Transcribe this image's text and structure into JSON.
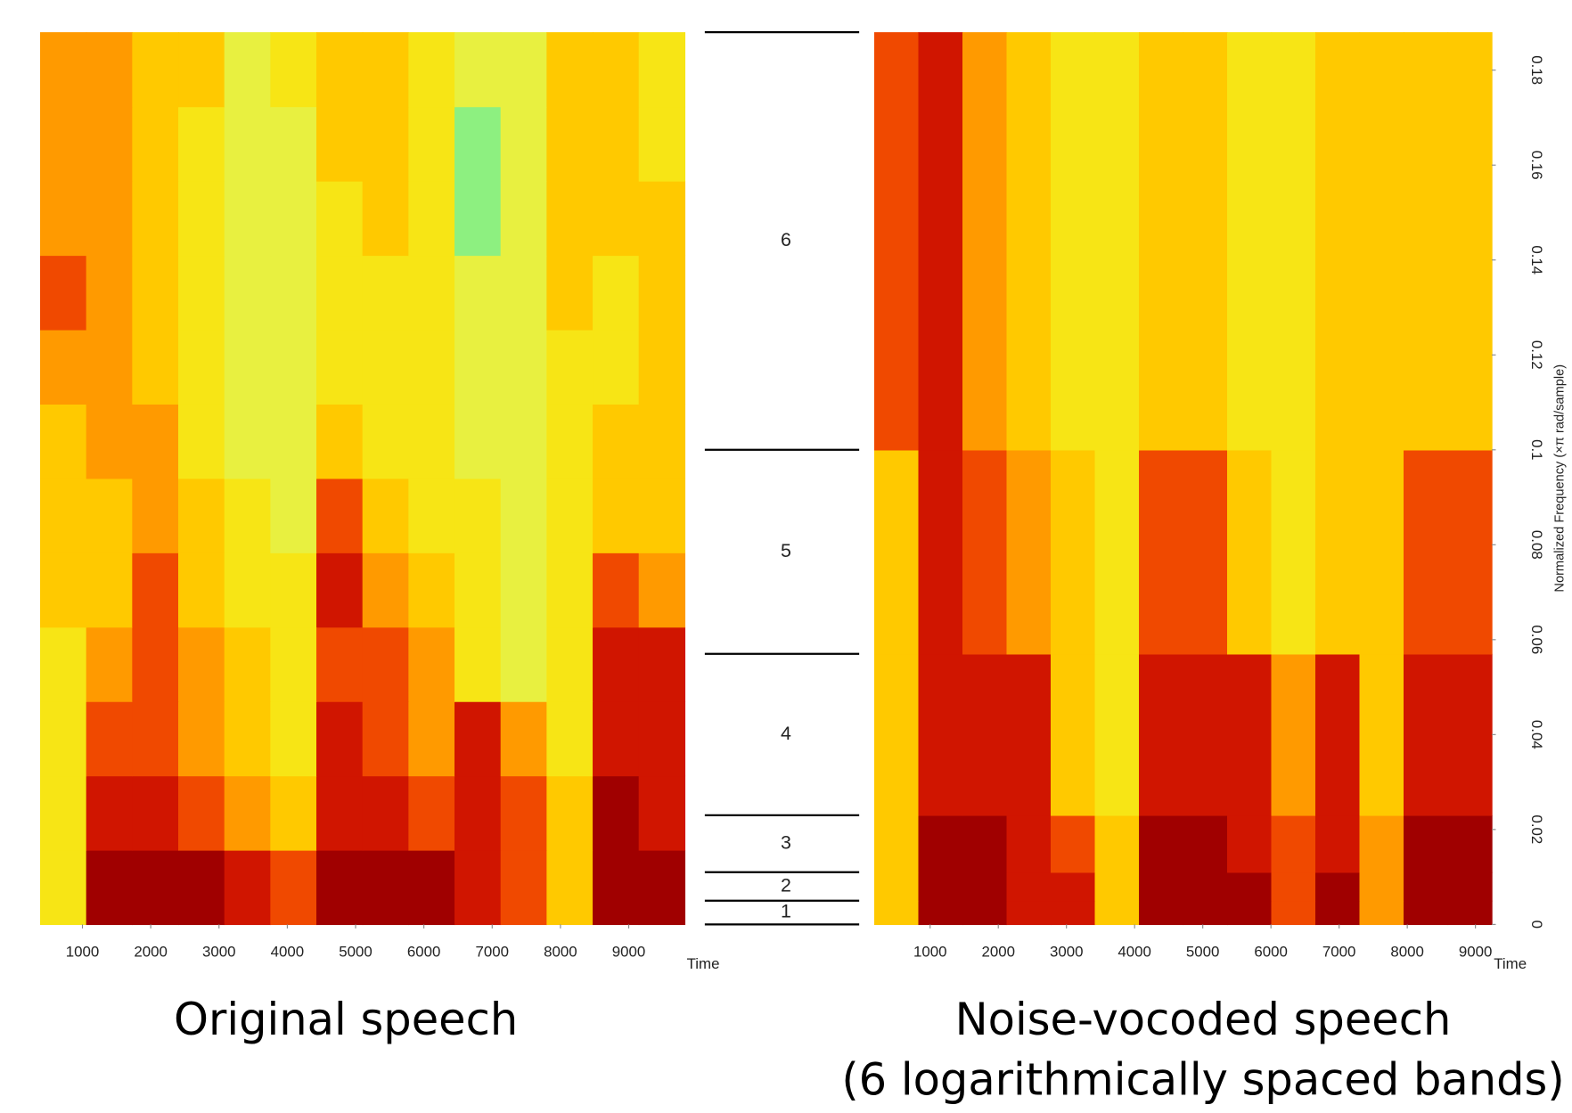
{
  "chart_data": [
    {
      "type": "heatmap",
      "caption": [
        "Original speech"
      ],
      "xlabel": "Time",
      "xlim": [
        380,
        9820
      ],
      "xticks": [
        1000,
        2000,
        3000,
        4000,
        5000,
        6000,
        7000,
        8000,
        9000
      ],
      "zlim": [
        0,
        9
      ],
      "colormap": [
        "#00c8ff",
        "#60f0a0",
        "#e8f040",
        "#ffe000",
        "#ff9a00",
        "#e82000",
        "#a00000"
      ],
      "z": [
        [
          4,
          9,
          9,
          9,
          8,
          7,
          9,
          9,
          9,
          8,
          7,
          5,
          9,
          9
        ],
        [
          4,
          8,
          8,
          7,
          6,
          5,
          8,
          8,
          7,
          8,
          7,
          5,
          9,
          8
        ],
        [
          4,
          7,
          7,
          6,
          5,
          4,
          8,
          7,
          6,
          8,
          6,
          4,
          8,
          8
        ],
        [
          4,
          6,
          7,
          6,
          5,
          4,
          7,
          7,
          6,
          4,
          3,
          4,
          8,
          8
        ],
        [
          5,
          5,
          7,
          5,
          4,
          4,
          8,
          6,
          5,
          4,
          3,
          4,
          7,
          6
        ],
        [
          5,
          5,
          6,
          5,
          4,
          3,
          7,
          5,
          4,
          4,
          3,
          4,
          5,
          5
        ],
        [
          5,
          6,
          6,
          4,
          3,
          3,
          5,
          4,
          4,
          3,
          3,
          4,
          5,
          5
        ],
        [
          6,
          6,
          5,
          4,
          3,
          3,
          4,
          4,
          4,
          3,
          3,
          4,
          4,
          5
        ],
        [
          7,
          6,
          5,
          4,
          3,
          3,
          4,
          4,
          4,
          3,
          3,
          5,
          4,
          5
        ],
        [
          6,
          6,
          5,
          4,
          3,
          3,
          4,
          5,
          4,
          2,
          3,
          5,
          5,
          5
        ],
        [
          6,
          6,
          5,
          4,
          3,
          3,
          5,
          5,
          4,
          2,
          3,
          5,
          5,
          4
        ],
        [
          6,
          6,
          5,
          5,
          3,
          4,
          5,
          5,
          4,
          3,
          3,
          5,
          5,
          4
        ]
      ]
    },
    {
      "type": "heatmap",
      "caption": [
        "Noise-vocoded speech",
        "(6 logarithmically spaced bands)"
      ],
      "xlabel": "Time",
      "ylabel": "Normalized Frequency  (×π rad/sample)",
      "xlim": [
        180,
        9240
      ],
      "xticks": [
        1000,
        2000,
        3000,
        4000,
        5000,
        6000,
        7000,
        8000,
        9000
      ],
      "ylim": [
        0,
        0.188
      ],
      "yticks": [
        0,
        0.02,
        0.04,
        0.06,
        0.08,
        0.1,
        0.12,
        0.14,
        0.16,
        0.18
      ],
      "y_edges": [
        0,
        0.005,
        0.011,
        0.023,
        0.057,
        0.1,
        0.188
      ],
      "band_labels": [
        "1",
        "2",
        "3",
        "4",
        "5",
        "6"
      ],
      "zlim": [
        0,
        9
      ],
      "colormap": [
        "#00c8ff",
        "#60f0a0",
        "#e8f040",
        "#ffe000",
        "#ff9a00",
        "#e82000",
        "#a00000"
      ],
      "z": [
        [
          5,
          9,
          9,
          8,
          8,
          5,
          9,
          9,
          9,
          7,
          9,
          6,
          9,
          9
        ],
        [
          5,
          9,
          9,
          8,
          8,
          5,
          9,
          9,
          9,
          7,
          9,
          6,
          9,
          9
        ],
        [
          5,
          9,
          9,
          8,
          7,
          5,
          9,
          9,
          8,
          7,
          8,
          6,
          9,
          9
        ],
        [
          5,
          8,
          8,
          8,
          5,
          4,
          8,
          8,
          8,
          6,
          8,
          5,
          8,
          8
        ],
        [
          5,
          8,
          7,
          6,
          5,
          4,
          7,
          7,
          5,
          4,
          5,
          5,
          7,
          7
        ],
        [
          7,
          8,
          6,
          5,
          4,
          4,
          5,
          5,
          4,
          4,
          5,
          5,
          5,
          5
        ]
      ]
    }
  ]
}
